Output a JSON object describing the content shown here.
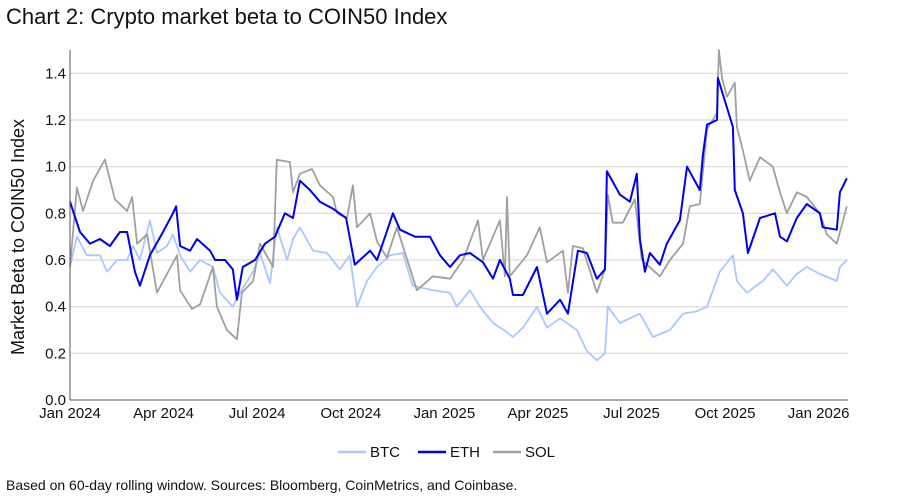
{
  "chart_data": {
    "type": "line",
    "title": "Chart 2: Crypto market beta to COIN50 Index",
    "ylabel": "Market Beta to COIN50 Index",
    "xlabel": "",
    "x_unit": "months since Jan 2024",
    "xlim": [
      0,
      24.94
    ],
    "ylim": [
      0,
      1.5
    ],
    "grid": true,
    "legend_position": "bottom-center",
    "yticks": [
      0.0,
      0.2,
      0.4,
      0.6,
      0.8,
      1.0,
      1.2,
      1.4
    ],
    "ytick_labels": [
      "0.0",
      "0.2",
      "0.4",
      "0.6",
      "0.8",
      "1.0",
      "1.2",
      "1.4"
    ],
    "xticks": [
      0,
      3,
      6,
      9,
      12,
      15,
      18,
      21,
      24
    ],
    "xtick_labels": [
      "Jan 2024",
      "Apr 2024",
      "Jul 2024",
      "Oct 2024",
      "Jan 2025",
      "Apr 2025",
      "Jul 2025",
      "Oct 2025",
      "Jan 2026"
    ],
    "footnote": "Based on 60-day rolling window. Sources: Bloomberg, CoinMetrics, and Coinbase.",
    "series": [
      {
        "name": "BTC",
        "color": "#a8c8ff",
        "points": [
          [
            0,
            0.57
          ],
          [
            0.22,
            0.7
          ],
          [
            0.54,
            0.62
          ],
          [
            0.96,
            0.62
          ],
          [
            1.19,
            0.55
          ],
          [
            1.51,
            0.6
          ],
          [
            1.83,
            0.6
          ],
          [
            2.02,
            0.66
          ],
          [
            2.24,
            0.6
          ],
          [
            2.56,
            0.77
          ],
          [
            2.79,
            0.63
          ],
          [
            3.11,
            0.66
          ],
          [
            3.3,
            0.71
          ],
          [
            3.53,
            0.62
          ],
          [
            3.85,
            0.55
          ],
          [
            4.17,
            0.6
          ],
          [
            4.58,
            0.57
          ],
          [
            4.81,
            0.46
          ],
          [
            5.22,
            0.4
          ],
          [
            5.45,
            0.46
          ],
          [
            5.87,
            0.55
          ],
          [
            6.09,
            0.63
          ],
          [
            6.41,
            0.5
          ],
          [
            6.63,
            0.74
          ],
          [
            6.96,
            0.6
          ],
          [
            7.15,
            0.69
          ],
          [
            7.37,
            0.74
          ],
          [
            7.79,
            0.64
          ],
          [
            8.24,
            0.63
          ],
          [
            8.65,
            0.56
          ],
          [
            8.97,
            0.62
          ],
          [
            9.2,
            0.4
          ],
          [
            9.52,
            0.51
          ],
          [
            9.84,
            0.57
          ],
          [
            10.26,
            0.62
          ],
          [
            10.67,
            0.63
          ],
          [
            10.99,
            0.49
          ],
          [
            11.63,
            0.47
          ],
          [
            12.18,
            0.46
          ],
          [
            12.4,
            0.4
          ],
          [
            12.82,
            0.47
          ],
          [
            13.14,
            0.4
          ],
          [
            13.56,
            0.33
          ],
          [
            14.01,
            0.29
          ],
          [
            14.2,
            0.27
          ],
          [
            14.52,
            0.31
          ],
          [
            14.97,
            0.4
          ],
          [
            15.29,
            0.31
          ],
          [
            15.71,
            0.35
          ],
          [
            15.93,
            0.33
          ],
          [
            16.25,
            0.3
          ],
          [
            16.57,
            0.21
          ],
          [
            16.89,
            0.17
          ],
          [
            17.15,
            0.2
          ],
          [
            17.24,
            0.4
          ],
          [
            17.63,
            0.33
          ],
          [
            18.27,
            0.37
          ],
          [
            18.69,
            0.27
          ],
          [
            19.23,
            0.3
          ],
          [
            19.65,
            0.37
          ],
          [
            20.1,
            0.38
          ],
          [
            20.42,
            0.4
          ],
          [
            20.83,
            0.55
          ],
          [
            21.25,
            0.62
          ],
          [
            21.38,
            0.51
          ],
          [
            21.7,
            0.46
          ],
          [
            22.21,
            0.51
          ],
          [
            22.53,
            0.56
          ],
          [
            22.98,
            0.49
          ],
          [
            23.3,
            0.54
          ],
          [
            23.62,
            0.57
          ],
          [
            24.04,
            0.54
          ],
          [
            24.58,
            0.51
          ],
          [
            24.68,
            0.57
          ],
          [
            24.9,
            0.6
          ]
        ]
      },
      {
        "name": "ETH",
        "color": "#0000ee",
        "points": [
          [
            0,
            0.85
          ],
          [
            0.32,
            0.72
          ],
          [
            0.64,
            0.67
          ],
          [
            0.96,
            0.69
          ],
          [
            1.28,
            0.66
          ],
          [
            1.6,
            0.72
          ],
          [
            1.83,
            0.72
          ],
          [
            2.08,
            0.55
          ],
          [
            2.24,
            0.49
          ],
          [
            2.56,
            0.62
          ],
          [
            2.98,
            0.72
          ],
          [
            3.3,
            0.8
          ],
          [
            3.4,
            0.83
          ],
          [
            3.53,
            0.66
          ],
          [
            3.85,
            0.64
          ],
          [
            4.07,
            0.69
          ],
          [
            4.49,
            0.64
          ],
          [
            4.65,
            0.6
          ],
          [
            4.97,
            0.6
          ],
          [
            5.22,
            0.56
          ],
          [
            5.35,
            0.43
          ],
          [
            5.54,
            0.57
          ],
          [
            5.93,
            0.6
          ],
          [
            6.25,
            0.67
          ],
          [
            6.57,
            0.7
          ],
          [
            6.73,
            0.75
          ],
          [
            6.89,
            0.8
          ],
          [
            7.15,
            0.78
          ],
          [
            7.37,
            0.94
          ],
          [
            7.69,
            0.9
          ],
          [
            8.01,
            0.85
          ],
          [
            8.43,
            0.82
          ],
          [
            8.85,
            0.78
          ],
          [
            9.13,
            0.58
          ],
          [
            9.62,
            0.64
          ],
          [
            9.84,
            0.6
          ],
          [
            10.1,
            0.7
          ],
          [
            10.35,
            0.8
          ],
          [
            10.58,
            0.73
          ],
          [
            11.06,
            0.7
          ],
          [
            11.54,
            0.7
          ],
          [
            11.86,
            0.62
          ],
          [
            12.18,
            0.57
          ],
          [
            12.5,
            0.62
          ],
          [
            12.82,
            0.63
          ],
          [
            13.24,
            0.59
          ],
          [
            13.56,
            0.52
          ],
          [
            13.78,
            0.6
          ],
          [
            14.1,
            0.52
          ],
          [
            14.2,
            0.45
          ],
          [
            14.52,
            0.45
          ],
          [
            14.97,
            0.57
          ],
          [
            15.29,
            0.37
          ],
          [
            15.71,
            0.43
          ],
          [
            15.96,
            0.37
          ],
          [
            16.28,
            0.64
          ],
          [
            16.57,
            0.63
          ],
          [
            16.89,
            0.52
          ],
          [
            17.15,
            0.56
          ],
          [
            17.21,
            0.98
          ],
          [
            17.63,
            0.88
          ],
          [
            17.95,
            0.85
          ],
          [
            18.17,
            0.97
          ],
          [
            18.27,
            0.69
          ],
          [
            18.43,
            0.55
          ],
          [
            18.59,
            0.63
          ],
          [
            18.91,
            0.58
          ],
          [
            19.13,
            0.67
          ],
          [
            19.55,
            0.77
          ],
          [
            19.78,
            1.0
          ],
          [
            20.19,
            0.9
          ],
          [
            20.29,
            1.05
          ],
          [
            20.42,
            1.18
          ],
          [
            20.74,
            1.2
          ],
          [
            20.77,
            1.38
          ],
          [
            21.25,
            1.17
          ],
          [
            21.31,
            0.9
          ],
          [
            21.57,
            0.8
          ],
          [
            21.73,
            0.63
          ],
          [
            22.12,
            0.78
          ],
          [
            22.6,
            0.8
          ],
          [
            22.76,
            0.7
          ],
          [
            22.98,
            0.68
          ],
          [
            23.3,
            0.78
          ],
          [
            23.62,
            0.84
          ],
          [
            24.04,
            0.8
          ],
          [
            24.13,
            0.74
          ],
          [
            24.58,
            0.73
          ],
          [
            24.68,
            0.89
          ],
          [
            24.9,
            0.95
          ]
        ]
      },
      {
        "name": "SOL",
        "color": "#a0a0a0",
        "points": [
          [
            0,
            0.57
          ],
          [
            0.22,
            0.91
          ],
          [
            0.42,
            0.81
          ],
          [
            0.74,
            0.94
          ],
          [
            1.12,
            1.03
          ],
          [
            1.44,
            0.86
          ],
          [
            1.83,
            0.81
          ],
          [
            1.99,
            0.87
          ],
          [
            2.15,
            0.67
          ],
          [
            2.47,
            0.71
          ],
          [
            2.79,
            0.46
          ],
          [
            3.11,
            0.54
          ],
          [
            3.43,
            0.62
          ],
          [
            3.53,
            0.47
          ],
          [
            3.91,
            0.39
          ],
          [
            4.17,
            0.41
          ],
          [
            4.58,
            0.57
          ],
          [
            4.71,
            0.4
          ],
          [
            5.03,
            0.3
          ],
          [
            5.35,
            0.26
          ],
          [
            5.51,
            0.46
          ],
          [
            5.87,
            0.51
          ],
          [
            6.09,
            0.67
          ],
          [
            6.51,
            0.57
          ],
          [
            6.63,
            1.03
          ],
          [
            7.05,
            1.02
          ],
          [
            7.15,
            0.89
          ],
          [
            7.37,
            0.97
          ],
          [
            7.76,
            0.99
          ],
          [
            8.01,
            0.92
          ],
          [
            8.43,
            0.87
          ],
          [
            8.56,
            0.8
          ],
          [
            8.88,
            0.78
          ],
          [
            9.07,
            0.92
          ],
          [
            9.2,
            0.74
          ],
          [
            9.62,
            0.8
          ],
          [
            9.84,
            0.68
          ],
          [
            10.16,
            0.61
          ],
          [
            10.48,
            0.74
          ],
          [
            11.12,
            0.47
          ],
          [
            11.63,
            0.53
          ],
          [
            12.18,
            0.52
          ],
          [
            12.6,
            0.6
          ],
          [
            13.08,
            0.77
          ],
          [
            13.24,
            0.6
          ],
          [
            13.78,
            0.77
          ],
          [
            13.94,
            0.53
          ],
          [
            14.01,
            0.87
          ],
          [
            14.1,
            0.53
          ],
          [
            14.65,
            0.62
          ],
          [
            15.06,
            0.74
          ],
          [
            15.29,
            0.59
          ],
          [
            15.8,
            0.64
          ],
          [
            15.96,
            0.46
          ],
          [
            16.12,
            0.66
          ],
          [
            16.44,
            0.65
          ],
          [
            16.89,
            0.46
          ],
          [
            17.15,
            0.56
          ],
          [
            17.24,
            0.88
          ],
          [
            17.4,
            0.76
          ],
          [
            17.72,
            0.76
          ],
          [
            18.11,
            0.86
          ],
          [
            18.33,
            0.6
          ],
          [
            18.91,
            0.53
          ],
          [
            19.23,
            0.6
          ],
          [
            19.65,
            0.67
          ],
          [
            19.87,
            0.83
          ],
          [
            20.19,
            0.84
          ],
          [
            20.42,
            1.16
          ],
          [
            20.74,
            1.23
          ],
          [
            20.8,
            1.5
          ],
          [
            20.9,
            1.38
          ],
          [
            21.06,
            1.3
          ],
          [
            21.31,
            1.36
          ],
          [
            21.38,
            1.17
          ],
          [
            21.57,
            1.07
          ],
          [
            21.79,
            0.94
          ],
          [
            22.12,
            1.04
          ],
          [
            22.53,
            1.0
          ],
          [
            22.76,
            0.89
          ],
          [
            22.98,
            0.8
          ],
          [
            23.3,
            0.89
          ],
          [
            23.62,
            0.87
          ],
          [
            24.04,
            0.8
          ],
          [
            24.26,
            0.71
          ],
          [
            24.58,
            0.67
          ],
          [
            24.9,
            0.83
          ]
        ]
      }
    ]
  }
}
